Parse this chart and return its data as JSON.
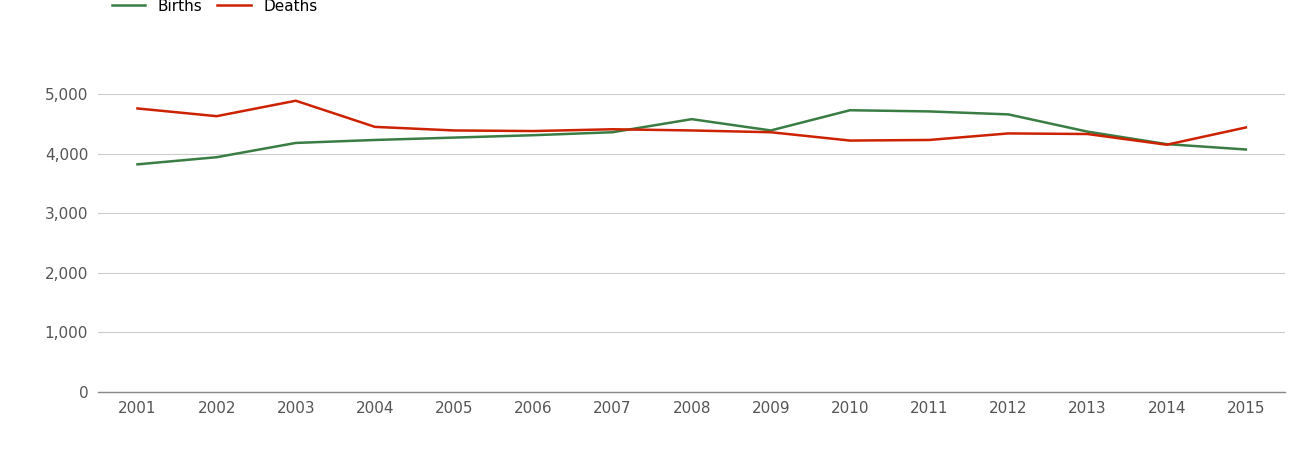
{
  "years": [
    2001,
    2002,
    2003,
    2004,
    2005,
    2006,
    2007,
    2008,
    2009,
    2010,
    2011,
    2012,
    2013,
    2014,
    2015
  ],
  "births": [
    3820,
    3940,
    4180,
    4230,
    4270,
    4310,
    4360,
    4580,
    4390,
    4730,
    4710,
    4660,
    4370,
    4160,
    4070
  ],
  "deaths": [
    4760,
    4630,
    4890,
    4450,
    4390,
    4380,
    4410,
    4390,
    4360,
    4220,
    4230,
    4340,
    4330,
    4150,
    4440
  ],
  "births_color": "#3a7d44",
  "deaths_color": "#cc2200",
  "line_width": 1.8,
  "legend_labels": [
    "Births",
    "Deaths"
  ],
  "ylim": [
    0,
    5600
  ],
  "yticks": [
    0,
    1000,
    2000,
    3000,
    4000,
    5000
  ],
  "ytick_labels": [
    "0",
    "1,000",
    "2,000",
    "3,000",
    "4,000",
    "5,000"
  ],
  "grid_color": "#cccccc",
  "background_color": "#ffffff",
  "tick_fontsize": 11,
  "legend_fontsize": 11,
  "xlim_left": 2000.5,
  "xlim_right": 2015.5
}
